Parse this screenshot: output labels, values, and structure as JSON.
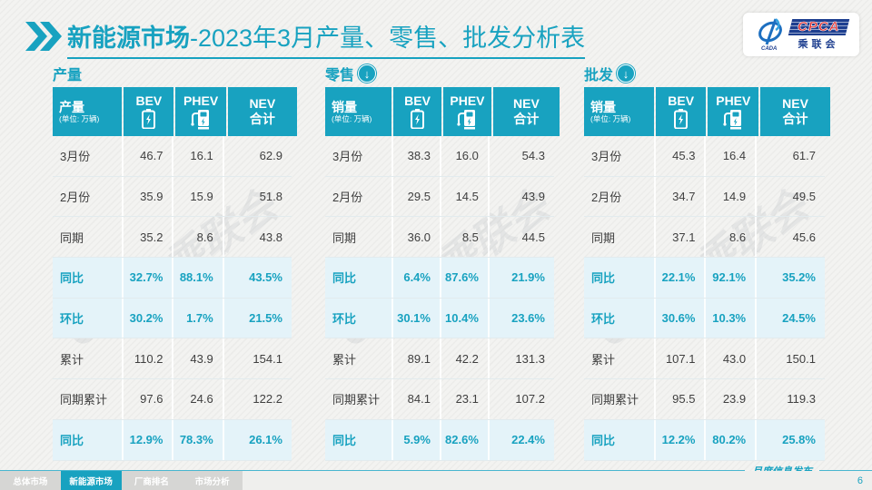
{
  "header": {
    "title_bold": "新能源市场",
    "title_rest": "-2023年3月产量、零售、批发分析表",
    "logo": {
      "acronym": "CPCA",
      "cn_name": "乘联会"
    }
  },
  "unit_note": "(单位: 万辆)",
  "columns": {
    "bev": "BEV",
    "phev": "PHEV",
    "nev_line1": "NEV",
    "nev_line2": "合计"
  },
  "row_labels": [
    "3月份",
    "2月份",
    "同期",
    "同比",
    "环比",
    "累计",
    "同期累计",
    "同比"
  ],
  "highlight_rows": [
    3,
    4,
    7
  ],
  "watermark": "CPCA乘联会",
  "tables": [
    {
      "section_label": "产量",
      "corner_label": "产量",
      "has_arrow": false,
      "rows": [
        [
          "46.7",
          "16.1",
          "62.9"
        ],
        [
          "35.9",
          "15.9",
          "51.8"
        ],
        [
          "35.2",
          "8.6",
          "43.8"
        ],
        [
          "32.7%",
          "88.1%",
          "43.5%"
        ],
        [
          "30.2%",
          "1.7%",
          "21.5%"
        ],
        [
          "110.2",
          "43.9",
          "154.1"
        ],
        [
          "97.6",
          "24.6",
          "122.2"
        ],
        [
          "12.9%",
          "78.3%",
          "26.1%"
        ]
      ]
    },
    {
      "section_label": "零售",
      "corner_label": "销量",
      "has_arrow": true,
      "rows": [
        [
          "38.3",
          "16.0",
          "54.3"
        ],
        [
          "29.5",
          "14.5",
          "43.9"
        ],
        [
          "36.0",
          "8.5",
          "44.5"
        ],
        [
          "6.4%",
          "87.6%",
          "21.9%"
        ],
        [
          "30.1%",
          "10.4%",
          "23.6%"
        ],
        [
          "89.1",
          "42.2",
          "131.3"
        ],
        [
          "84.1",
          "23.1",
          "107.2"
        ],
        [
          "5.9%",
          "82.6%",
          "22.4%"
        ]
      ]
    },
    {
      "section_label": "批发",
      "corner_label": "销量",
      "has_arrow": true,
      "rows": [
        [
          "45.3",
          "16.4",
          "61.7"
        ],
        [
          "34.7",
          "14.9",
          "49.5"
        ],
        [
          "37.1",
          "8.6",
          "45.6"
        ],
        [
          "22.1%",
          "92.1%",
          "35.2%"
        ],
        [
          "30.6%",
          "10.3%",
          "24.5%"
        ],
        [
          "107.1",
          "43.0",
          "150.1"
        ],
        [
          "95.5",
          "23.9",
          "119.3"
        ],
        [
          "12.2%",
          "80.2%",
          "25.8%"
        ]
      ]
    }
  ],
  "footer": {
    "tabs": [
      {
        "label": "总体市场",
        "active": false
      },
      {
        "label": "新能源市场",
        "active": true
      },
      {
        "label": "厂商排名",
        "active": false
      },
      {
        "label": "市场分析",
        "active": false
      }
    ],
    "note": "月度信息发布",
    "page": "6"
  },
  "colors": {
    "teal": "#18a2c0",
    "highlight_bg": "#e4f3f9",
    "tab_gray": "#d6d6d4",
    "down_arrow_icon": "↓"
  }
}
